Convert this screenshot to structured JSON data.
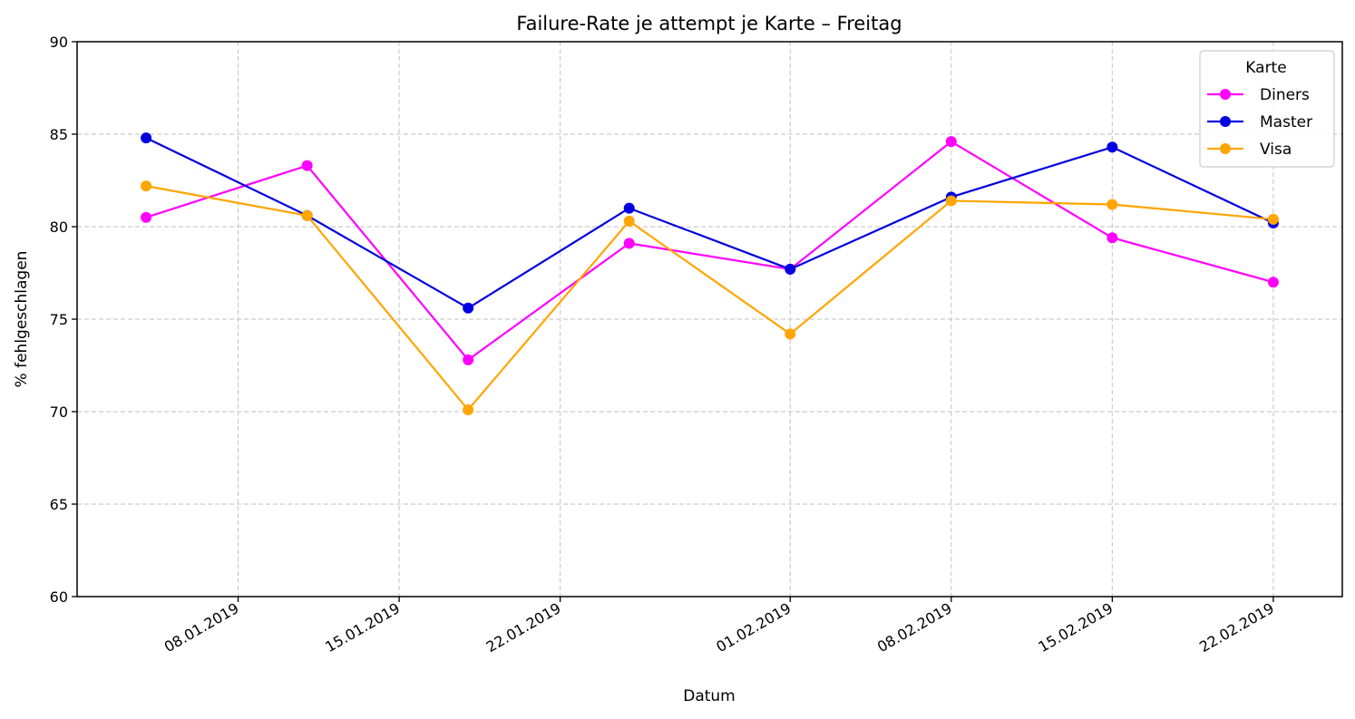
{
  "chart_data": {
    "type": "line",
    "title": "Failure-Rate je attempt je Karte – Freitag",
    "xlabel": "Datum",
    "ylabel": "% fehlgeschlagen",
    "ylim": [
      60,
      90
    ],
    "yticks": [
      60,
      65,
      70,
      75,
      80,
      85,
      90
    ],
    "xlim": [
      "2019-01-01",
      "2019-02-25"
    ],
    "xticks": [
      {
        "date": "2019-01-08",
        "label": "08.01.2019"
      },
      {
        "date": "2019-01-15",
        "label": "15.01.2019"
      },
      {
        "date": "2019-01-22",
        "label": "22.01.2019"
      },
      {
        "date": "2019-02-01",
        "label": "01.02.2019"
      },
      {
        "date": "2019-02-08",
        "label": "08.02.2019"
      },
      {
        "date": "2019-02-15",
        "label": "15.02.2019"
      },
      {
        "date": "2019-02-22",
        "label": "22.02.2019"
      }
    ],
    "x": [
      "2019-01-04",
      "2019-01-11",
      "2019-01-18",
      "2019-01-25",
      "2019-02-01",
      "2019-02-08",
      "2019-02-15",
      "2019-02-22"
    ],
    "grid": true,
    "legend": {
      "title": "Karte",
      "position": "top-right"
    },
    "series": [
      {
        "name": "Diners",
        "color": "#ff00ff",
        "values": [
          80.5,
          83.3,
          72.8,
          79.1,
          77.7,
          84.6,
          79.4,
          77.0
        ]
      },
      {
        "name": "Master",
        "color": "#0000e0",
        "values": [
          84.8,
          80.6,
          75.6,
          81.0,
          77.7,
          81.6,
          84.3,
          80.2
        ]
      },
      {
        "name": "Visa",
        "color": "#ffa500",
        "values": [
          82.2,
          80.6,
          70.1,
          80.3,
          74.2,
          81.4,
          81.2,
          80.4
        ]
      }
    ]
  }
}
